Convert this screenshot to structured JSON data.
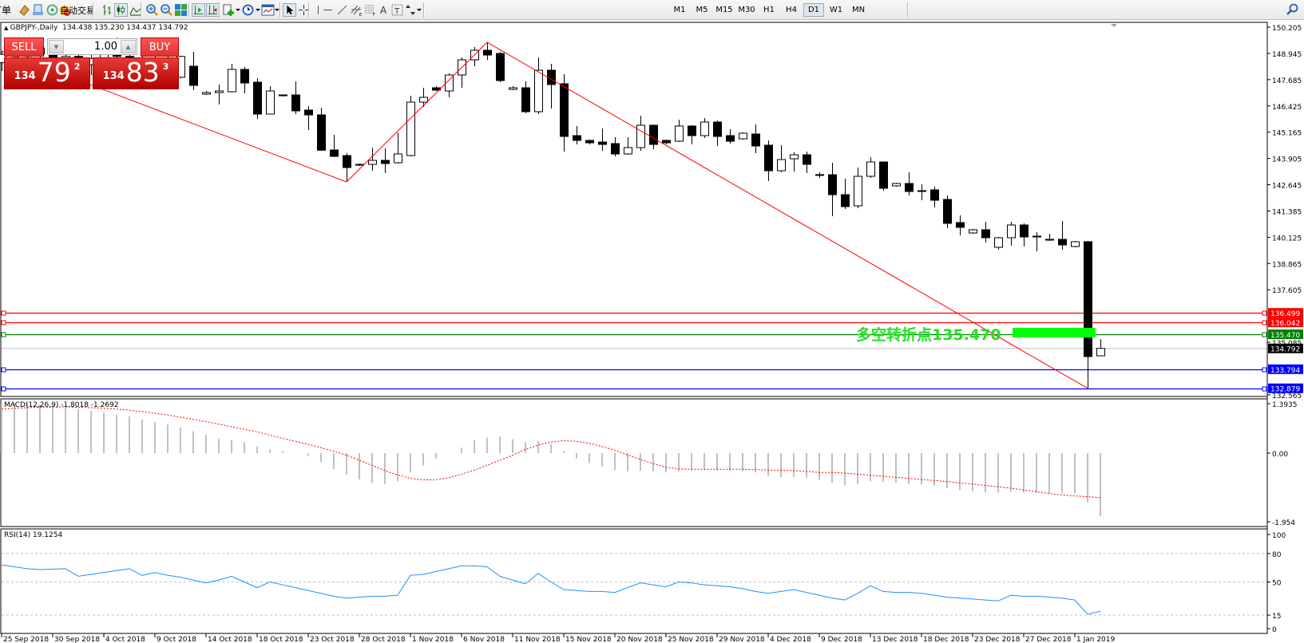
{
  "toolbar": {
    "order_label": "订单",
    "autotrade_label": "自动交易",
    "icons": [
      "profiles-icon",
      "data-window-icon",
      "signals-icon",
      "bar-chart-icon",
      "candlestick-icon",
      "line-chart-icon",
      "zoom-in-icon",
      "zoom-out-icon",
      "tile-windows-icon",
      "auto-scroll-icon",
      "chart-shift-icon",
      "indicators-icon",
      "periods-icon",
      "templates-icon",
      "cursor-icon",
      "crosshair-icon",
      "vertical-line-icon",
      "horizontal-line-icon",
      "trendline-icon",
      "equidistant-channel-icon",
      "fibonacci-icon",
      "text-icon",
      "text-label-icon",
      "arrows-icon",
      "search-icon"
    ],
    "timeframes": [
      "M1",
      "M5",
      "M15",
      "M30",
      "H1",
      "H4",
      "D1",
      "W1",
      "MN"
    ],
    "active_timeframe": "D1"
  },
  "chart": {
    "title": "GBPJPY-,Daily  134.438 135.230 134.437 134.792",
    "symbol": "GBPJPY-",
    "period": "Daily",
    "ohlc": [
      134.438,
      135.23,
      134.437,
      134.792
    ]
  },
  "trade_panel": {
    "sell_label": "SELL",
    "buy_label": "BUY",
    "lot": "1.00",
    "sell_price": {
      "prefix": "134",
      "big": "79",
      "sup": "2"
    },
    "buy_price": {
      "prefix": "134",
      "big": "83",
      "sup": "3"
    },
    "color": "#d42a25"
  },
  "annotation": {
    "text": "多空转折点135.470",
    "color": "#22e022"
  },
  "chart_data": [
    {
      "type": "candlestick",
      "title": "GBPJPY-,Daily",
      "y_ticks": [
        "150.205",
        "148.945",
        "147.685",
        "146.425",
        "145.165",
        "143.905",
        "142.645",
        "141.385",
        "140.125",
        "138.865",
        "137.605",
        "135.085",
        "132.565"
      ],
      "x_labels": [
        "25 Sep 2018",
        "30 Sep 2018",
        "4 Oct 2018",
        "9 Oct 2018",
        "14 Oct 2018",
        "18 Oct 2018",
        "23 Oct 2018",
        "28 Oct 2018",
        "1 Nov 2018",
        "6 Nov 2018",
        "11 Nov 2018",
        "15 Nov 2018",
        "20 Nov 2018",
        "25 Nov 2018",
        "29 Nov 2018",
        "4 Dec 2018",
        "9 Dec 2018",
        "13 Dec 2018",
        "18 Dec 2018",
        "23 Dec 2018",
        "27 Dec 2018",
        "1 Jan 2019"
      ],
      "x_label_every_bars": 4,
      "ohlc": [
        [
          148.5,
          149.06,
          148.1,
          148.9
        ],
        [
          149.0,
          149.5,
          148.6,
          148.8
        ],
        [
          148.8,
          149.4,
          148.4,
          149.2
        ],
        [
          149.2,
          149.6,
          148.7,
          148.9
        ],
        [
          148.9,
          149.3,
          148.2,
          148.5
        ],
        [
          148.5,
          149.0,
          148.0,
          148.8
        ],
        [
          148.8,
          149.3,
          148.3,
          148.4
        ],
        [
          148.4,
          148.9,
          147.9,
          148.7
        ],
        [
          148.7,
          149.6,
          148.5,
          149.3
        ],
        [
          149.3,
          149.7,
          148.6,
          148.8
        ],
        [
          148.8,
          149.1,
          148.0,
          148.2
        ],
        [
          148.2,
          148.8,
          147.8,
          148.6
        ],
        [
          148.6,
          149.0,
          148.1,
          148.4
        ],
        [
          148.4,
          148.9,
          147.9,
          148.1
        ],
        [
          147.8,
          148.83,
          147.75,
          148.8
        ],
        [
          148.33,
          149.019,
          147.182,
          147.411
        ],
        [
          146.99,
          147.143,
          146.952,
          147.067
        ],
        [
          147.067,
          147.45,
          146.493,
          147.143
        ],
        [
          147.105,
          148.445,
          147.067,
          148.177
        ],
        [
          148.177,
          148.291,
          147.029,
          147.526
        ],
        [
          147.564,
          147.756,
          145.804,
          146.034
        ],
        [
          146.034,
          147.373,
          146.034,
          147.143
        ],
        [
          146.952,
          146.952,
          146.875,
          146.94
        ],
        [
          146.952,
          147.603,
          146.034,
          146.187
        ],
        [
          146.225,
          146.416,
          145.268,
          145.995
        ],
        [
          145.995,
          146.34,
          144.273,
          144.3
        ],
        [
          144.311,
          145.039,
          143.967,
          144.005
        ],
        [
          144.044,
          144.158,
          142.781,
          143.469
        ],
        [
          143.622,
          143.661,
          143.546,
          143.6
        ],
        [
          143.622,
          144.426,
          143.316,
          143.814
        ],
        [
          143.814,
          144.388,
          143.202,
          143.661
        ],
        [
          143.699,
          145.153,
          143.661,
          144.12
        ],
        [
          144.044,
          146.914,
          144.005,
          146.608
        ],
        [
          146.608,
          147.296,
          146.378,
          146.837
        ],
        [
          147.296,
          147.373,
          147.143,
          147.182
        ],
        [
          147.143,
          147.985,
          146.837,
          147.909
        ],
        [
          147.909,
          148.751,
          147.296,
          148.636
        ],
        [
          148.636,
          149.248,
          148.33,
          149.095
        ],
        [
          149.095,
          149.478,
          148.636,
          148.866
        ],
        [
          148.942,
          149.019,
          147.564,
          147.641
        ],
        [
          147.22,
          147.373,
          147.182,
          147.296
        ],
        [
          147.296,
          147.603,
          146.072,
          146.148
        ],
        [
          146.148,
          148.751,
          146.034,
          148.138
        ],
        [
          148.138,
          148.445,
          146.301,
          147.45
        ],
        [
          147.488,
          147.947,
          144.235,
          144.962
        ],
        [
          145.0,
          145.46,
          144.579,
          144.771
        ],
        [
          144.771,
          144.81,
          144.579,
          144.656
        ],
        [
          144.694,
          145.345,
          144.273,
          144.579
        ],
        [
          144.618,
          144.924,
          144.005,
          144.12
        ],
        [
          144.12,
          144.924,
          144.082,
          144.426
        ],
        [
          144.426,
          145.957,
          144.273,
          145.498
        ],
        [
          145.498,
          145.536,
          144.35,
          144.579
        ],
        [
          144.771,
          144.81,
          144.579,
          144.656
        ],
        [
          144.732,
          145.766,
          144.694,
          145.46
        ],
        [
          145.46,
          145.498,
          144.579,
          145.0
        ],
        [
          145.0,
          145.842,
          144.885,
          145.651
        ],
        [
          145.651,
          145.727,
          144.503,
          144.962
        ],
        [
          145.0,
          145.306,
          144.618,
          144.732
        ],
        [
          144.847,
          145.153,
          144.81,
          145.115
        ],
        [
          145.077,
          145.536,
          144.158,
          144.503
        ],
        [
          144.541,
          144.771,
          142.819,
          143.316
        ],
        [
          143.316,
          144.541,
          143.24,
          143.852
        ],
        [
          143.89,
          144.197,
          143.278,
          144.082
        ],
        [
          144.082,
          144.235,
          143.202,
          143.622
        ],
        [
          143.125,
          143.24,
          142.972,
          143.13
        ],
        [
          143.125,
          143.699,
          141.135,
          142.168
        ],
        [
          142.168,
          142.934,
          141.48,
          141.594
        ],
        [
          141.633,
          143.469,
          141.518,
          143.049
        ],
        [
          143.049,
          143.967,
          142.972,
          143.737
        ],
        [
          143.737,
          143.737,
          142.36,
          142.474
        ],
        [
          142.589,
          142.742,
          142.551,
          142.704
        ],
        [
          142.704,
          143.24,
          142.13,
          142.321
        ],
        [
          142.36,
          142.666,
          141.9,
          142.35
        ],
        [
          142.398,
          142.551,
          141.556,
          141.9
        ],
        [
          141.939,
          142.13,
          140.561,
          140.791
        ],
        [
          140.829,
          141.173,
          140.217,
          140.599
        ],
        [
          140.331,
          140.523,
          140.293,
          140.485
        ],
        [
          140.485,
          140.867,
          139.872,
          140.102
        ],
        [
          139.643,
          140.14,
          139.528,
          140.102
        ],
        [
          140.102,
          140.867,
          139.719,
          140.714
        ],
        [
          140.714,
          140.791,
          139.681,
          140.14
        ],
        [
          140.178,
          140.37,
          139.451,
          140.17
        ],
        [
          140.025,
          140.293,
          139.949,
          140.02
        ],
        [
          140.025,
          140.905,
          139.528,
          139.758
        ],
        [
          139.681,
          139.949,
          139.643,
          139.911
        ],
        [
          139.911,
          139.949,
          132.879,
          134.4
        ],
        [
          134.438,
          135.23,
          134.437,
          134.792
        ]
      ],
      "bull_color": "#ffffff",
      "bear_color": "#000000",
      "zigzag": {
        "color": "#ff0000",
        "points": [
          [
            0,
            149.06
          ],
          [
            27,
            142.781
          ],
          [
            38,
            149.478
          ],
          [
            85,
            132.879
          ]
        ]
      },
      "levels": [
        {
          "price": 136.499,
          "label": "136.499",
          "color": "#ff0000"
        },
        {
          "price": 136.042,
          "label": "136.042",
          "color": "#ff0000"
        },
        {
          "price": 135.47,
          "label": "135.470",
          "color": "#008000"
        },
        {
          "price": 133.794,
          "label": "133.794",
          "color": "#0000ff"
        },
        {
          "price": 132.879,
          "label": "132.879",
          "color": "#0000ff"
        }
      ],
      "bid": {
        "price": 134.792,
        "label": "134.792",
        "color": "#c0c0c0"
      }
    },
    {
      "type": "bar+line",
      "title": "MACD(12,26,9) -1.8018 -1.2692",
      "y_ticks": [
        "1.3935",
        "0.00",
        "-1.954"
      ],
      "ylim": [
        -1.954,
        1.3935
      ],
      "main_color": "#c0c0c0",
      "signal_color": "#ff0000",
      "main": [
        1.35,
        1.38,
        1.36,
        1.33,
        1.3,
        1.25,
        1.2,
        1.15,
        1.1,
        1.05,
        1.0,
        0.92,
        0.85,
        0.78,
        0.7,
        0.6,
        0.5,
        0.4,
        0.35,
        0.3,
        0.18,
        0.1,
        0.05,
        0.0,
        -0.08,
        -0.25,
        -0.45,
        -0.62,
        -0.75,
        -0.85,
        -0.88,
        -0.8,
        -0.55,
        -0.35,
        -0.15,
        0.0,
        0.15,
        0.35,
        0.42,
        0.45,
        0.38,
        0.3,
        0.33,
        0.25,
        0.05,
        -0.15,
        -0.28,
        -0.38,
        -0.48,
        -0.52,
        -0.5,
        -0.52,
        -0.55,
        -0.52,
        -0.5,
        -0.48,
        -0.5,
        -0.5,
        -0.52,
        -0.55,
        -0.65,
        -0.68,
        -0.68,
        -0.7,
        -0.75,
        -0.85,
        -0.92,
        -0.88,
        -0.8,
        -0.82,
        -0.85,
        -0.88,
        -0.9,
        -0.93,
        -1.0,
        -1.05,
        -1.08,
        -1.12,
        -1.13,
        -1.1,
        -1.12,
        -1.13,
        -1.15,
        -1.15,
        -1.15,
        -1.4,
        -1.8018
      ],
      "signal": [
        1.2,
        1.22,
        1.24,
        1.25,
        1.26,
        1.26,
        1.25,
        1.24,
        1.22,
        1.2,
        1.17,
        1.13,
        1.09,
        1.04,
        0.98,
        0.92,
        0.86,
        0.79,
        0.72,
        0.65,
        0.58,
        0.49,
        0.4,
        0.32,
        0.24,
        0.15,
        0.05,
        -0.06,
        -0.2,
        -0.35,
        -0.5,
        -0.62,
        -0.72,
        -0.76,
        -0.76,
        -0.7,
        -0.6,
        -0.48,
        -0.35,
        -0.2,
        -0.06,
        0.1,
        0.22,
        0.3,
        0.34,
        0.32,
        0.27,
        0.18,
        0.08,
        -0.05,
        -0.18,
        -0.3,
        -0.4,
        -0.45,
        -0.46,
        -0.46,
        -0.46,
        -0.46,
        -0.46,
        -0.47,
        -0.48,
        -0.49,
        -0.5,
        -0.52,
        -0.55,
        -0.55,
        -0.57,
        -0.6,
        -0.63,
        -0.66,
        -0.69,
        -0.72,
        -0.75,
        -0.78,
        -0.81,
        -0.85,
        -0.88,
        -0.92,
        -0.96,
        -1.0,
        -1.05,
        -1.1,
        -1.15,
        -1.19,
        -1.22,
        -1.24,
        -1.2692
      ]
    },
    {
      "type": "line",
      "title": "RSI(14) 19.1254",
      "y_ticks": [
        "100",
        "80",
        "50",
        "15",
        "0"
      ],
      "ylim": [
        0,
        100
      ],
      "levels": [
        80,
        50,
        15
      ],
      "color": "#1e90ff",
      "values": [
        68,
        66,
        64,
        63,
        63.5,
        64,
        56,
        58,
        60,
        62,
        64,
        57,
        60,
        57,
        55,
        52,
        49,
        52,
        56,
        50,
        44,
        50,
        47,
        44,
        41,
        38,
        35,
        33,
        34,
        35,
        35,
        36,
        57,
        58,
        61,
        64,
        67,
        67,
        66,
        56,
        52,
        48,
        59,
        50,
        42,
        41,
        40,
        40,
        39,
        44,
        49,
        47,
        45,
        50,
        49,
        47,
        46,
        45,
        43,
        40,
        38,
        40,
        42,
        39,
        36,
        33,
        31,
        38,
        46,
        40,
        39,
        39,
        38,
        36,
        34,
        33,
        32,
        31,
        30,
        36,
        35,
        35,
        34,
        33,
        31,
        16,
        19.1254
      ]
    }
  ]
}
